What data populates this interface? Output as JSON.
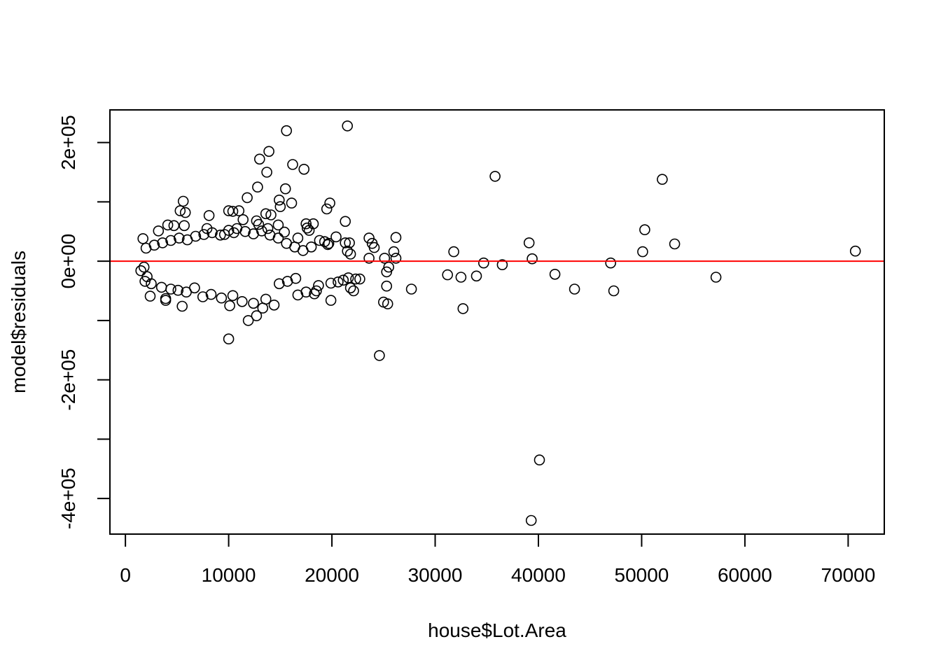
{
  "chart_data": {
    "type": "scatter",
    "title": "",
    "xlabel": "house$Lot.Area",
    "ylabel": "model$residuals",
    "xlim": [
      -1500,
      73500
    ],
    "ylim": [
      -460000,
      255000
    ],
    "x_ticks": [
      0,
      10000,
      20000,
      30000,
      40000,
      50000,
      60000,
      70000
    ],
    "x_tick_labels": [
      "0",
      "10000",
      "20000",
      "30000",
      "40000",
      "50000",
      "60000",
      "70000"
    ],
    "y_ticks": [
      -400000,
      -300000,
      -200000,
      -100000,
      0,
      100000,
      200000
    ],
    "y_tick_labels": [
      "-4e+05",
      "",
      "-2e+05",
      "",
      "0e+00",
      "",
      "2e+05"
    ],
    "grid": false,
    "legend": "none",
    "point_style": "open-circle",
    "point_color": "#000000",
    "reference_line": {
      "y": 0,
      "color": "#ff0000"
    },
    "points": [
      [
        15600,
        220000
      ],
      [
        21500,
        228000
      ],
      [
        13900,
        185000
      ],
      [
        16200,
        163000
      ],
      [
        13000,
        172000
      ],
      [
        17300,
        155000
      ],
      [
        13700,
        150000
      ],
      [
        35800,
        143000
      ],
      [
        52000,
        138000
      ],
      [
        12800,
        125000
      ],
      [
        15500,
        122000
      ],
      [
        11800,
        107000
      ],
      [
        5600,
        101000
      ],
      [
        16100,
        98000
      ],
      [
        14900,
        103000
      ],
      [
        19800,
        98000
      ],
      [
        15000,
        92000
      ],
      [
        19500,
        88000
      ],
      [
        5300,
        85000
      ],
      [
        5800,
        82000
      ],
      [
        10000,
        85000
      ],
      [
        10400,
        84000
      ],
      [
        11000,
        85000
      ],
      [
        13600,
        80000
      ],
      [
        14100,
        78000
      ],
      [
        8100,
        77000
      ],
      [
        11400,
        70000
      ],
      [
        12700,
        68000
      ],
      [
        14800,
        61000
      ],
      [
        21300,
        67000
      ],
      [
        12900,
        62000
      ],
      [
        5700,
        60000
      ],
      [
        4100,
        61000
      ],
      [
        4700,
        60000
      ],
      [
        17500,
        63000
      ],
      [
        18200,
        63000
      ],
      [
        50300,
        53000
      ],
      [
        3200,
        51000
      ],
      [
        7900,
        55000
      ],
      [
        13800,
        55000
      ],
      [
        17600,
        56000
      ],
      [
        17800,
        52000
      ],
      [
        15400,
        49000
      ],
      [
        9600,
        45000
      ],
      [
        10500,
        48000
      ],
      [
        23600,
        39000
      ],
      [
        26200,
        40000
      ],
      [
        20400,
        41000
      ],
      [
        16700,
        39000
      ],
      [
        1700,
        38000
      ],
      [
        39100,
        31000
      ],
      [
        53200,
        29000
      ],
      [
        23900,
        30000
      ],
      [
        24100,
        23000
      ],
      [
        21700,
        31000
      ],
      [
        21300,
        31000
      ],
      [
        18800,
        35000
      ],
      [
        19300,
        33000
      ],
      [
        19700,
        30000
      ],
      [
        18000,
        24000
      ],
      [
        19600,
        28000
      ],
      [
        31800,
        16000
      ],
      [
        50100,
        16000
      ],
      [
        70700,
        17000
      ],
      [
        26000,
        16000
      ],
      [
        21500,
        17000
      ],
      [
        21800,
        12000
      ],
      [
        23600,
        5000
      ],
      [
        26200,
        5000
      ],
      [
        25100,
        5000
      ],
      [
        39400,
        4000
      ],
      [
        34700,
        -3000
      ],
      [
        36500,
        -6000
      ],
      [
        47000,
        -3000
      ],
      [
        25500,
        -10000
      ],
      [
        25300,
        -18000
      ],
      [
        31200,
        -23000
      ],
      [
        32500,
        -27000
      ],
      [
        34000,
        -25000
      ],
      [
        41600,
        -22000
      ],
      [
        57200,
        -27000
      ],
      [
        22300,
        -30000
      ],
      [
        22700,
        -30000
      ],
      [
        21600,
        -28000
      ],
      [
        21100,
        -32000
      ],
      [
        20600,
        -35000
      ],
      [
        27700,
        -47000
      ],
      [
        43500,
        -47000
      ],
      [
        47300,
        -50000
      ],
      [
        25300,
        -42000
      ],
      [
        21800,
        -45000
      ],
      [
        22100,
        -50000
      ],
      [
        18500,
        -50000
      ],
      [
        18700,
        -41000
      ],
      [
        19900,
        -37000
      ],
      [
        16700,
        -57000
      ],
      [
        17500,
        -52000
      ],
      [
        18300,
        -55000
      ],
      [
        19900,
        -66000
      ],
      [
        25000,
        -69000
      ],
      [
        25400,
        -72000
      ],
      [
        32700,
        -80000
      ],
      [
        14400,
        -74000
      ],
      [
        13300,
        -79000
      ],
      [
        10100,
        -75000
      ],
      [
        5500,
        -76000
      ],
      [
        3900,
        -66000
      ],
      [
        3900,
        -63000
      ],
      [
        2400,
        -59000
      ],
      [
        11900,
        -100000
      ],
      [
        12700,
        -92000
      ],
      [
        10000,
        -131000
      ],
      [
        24600,
        -159000
      ],
      [
        40100,
        -335000
      ],
      [
        39300,
        -437000
      ],
      [
        1500,
        -16000
      ],
      [
        1800,
        -10000
      ],
      [
        2100,
        -26000
      ],
      [
        1900,
        -34000
      ],
      [
        2500,
        -38000
      ],
      [
        3500,
        -44000
      ],
      [
        4400,
        -47000
      ],
      [
        5100,
        -49000
      ],
      [
        5900,
        -52000
      ],
      [
        6700,
        -45000
      ],
      [
        7500,
        -60000
      ],
      [
        8300,
        -56000
      ],
      [
        9300,
        -62000
      ],
      [
        10400,
        -58000
      ],
      [
        11300,
        -68000
      ],
      [
        12400,
        -71000
      ],
      [
        13600,
        -64000
      ],
      [
        14900,
        -38000
      ],
      [
        15700,
        -34000
      ],
      [
        16500,
        -29000
      ],
      [
        2000,
        22000
      ],
      [
        2800,
        27000
      ],
      [
        3600,
        31000
      ],
      [
        4400,
        35000
      ],
      [
        5200,
        39000
      ],
      [
        6000,
        36000
      ],
      [
        6800,
        42000
      ],
      [
        7600,
        45000
      ],
      [
        8400,
        48000
      ],
      [
        9200,
        44000
      ],
      [
        10000,
        52000
      ],
      [
        10800,
        55000
      ],
      [
        11600,
        50000
      ],
      [
        12400,
        46000
      ],
      [
        13200,
        51000
      ],
      [
        14000,
        44000
      ],
      [
        14800,
        39000
      ],
      [
        15600,
        30000
      ],
      [
        16400,
        24000
      ],
      [
        17200,
        18000
      ]
    ]
  }
}
